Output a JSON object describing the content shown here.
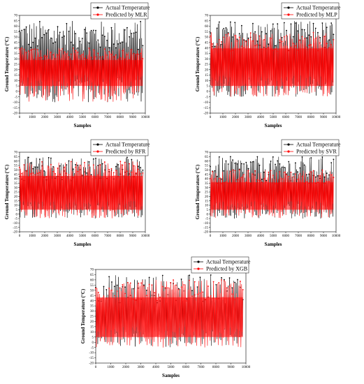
{
  "chart_data": [
    {
      "type": "line",
      "xlabel": "Samples",
      "ylabel": "Ground Temperature (°C)",
      "xlim": [
        0,
        10000
      ],
      "ylim": [
        -20,
        70
      ],
      "x_ticks": [
        "0",
        "1000",
        "2000",
        "3000",
        "4000",
        "5000",
        "6000",
        "7000",
        "8000",
        "9000",
        "10000"
      ],
      "y_ticks": [
        "-20",
        "-15",
        "-10",
        "-5",
        "0",
        "5",
        "10",
        "15",
        "20",
        "25",
        "30",
        "35",
        "40",
        "45",
        "50",
        "55",
        "60",
        "65",
        "70"
      ],
      "series": [
        {
          "name": "Actual Temperature",
          "color": "#000000",
          "marker": "circle",
          "range": [
            -10,
            65
          ]
        },
        {
          "name": "Predicted by MLR",
          "color": "#ff0000",
          "marker": "circle",
          "range": [
            -10,
            40
          ]
        }
      ],
      "legend": "top-right"
    },
    {
      "type": "line",
      "xlabel": "Samples",
      "ylabel": "Ground Temperature (°C)",
      "xlim": [
        0,
        10000
      ],
      "ylim": [
        -20,
        70
      ],
      "x_ticks": [
        "0",
        "1000",
        "2000",
        "3000",
        "4000",
        "5000",
        "6000",
        "7000",
        "8000",
        "9000",
        "10000"
      ],
      "y_ticks": [
        "-20",
        "-15",
        "-10",
        "-5",
        "0",
        "5",
        "10",
        "15",
        "20",
        "25",
        "30",
        "35",
        "40",
        "45",
        "50",
        "55",
        "60",
        "65",
        "70"
      ],
      "series": [
        {
          "name": "Actual Temperature",
          "color": "#000000",
          "marker": "circle",
          "range": [
            -5,
            65
          ]
        },
        {
          "name": "Predicted by MLP",
          "color": "#ff0000",
          "marker": "circle",
          "range": [
            -5,
            55
          ]
        }
      ],
      "legend": "top-right"
    },
    {
      "type": "line",
      "xlabel": "Samples",
      "ylabel": "Ground Temperature (°C)",
      "xlim": [
        0,
        10000
      ],
      "ylim": [
        -20,
        70
      ],
      "x_ticks": [
        "0",
        "1000",
        "2000",
        "3000",
        "4000",
        "5000",
        "6000",
        "7000",
        "8000",
        "9000",
        "10000"
      ],
      "y_ticks": [
        "-20",
        "-15",
        "-10",
        "-5",
        "0",
        "5",
        "10",
        "15",
        "20",
        "25",
        "30",
        "35",
        "40",
        "45",
        "50",
        "55",
        "60",
        "65",
        "70"
      ],
      "series": [
        {
          "name": "Actual Temperature",
          "color": "#000000",
          "marker": "circle",
          "range": [
            -5,
            65
          ]
        },
        {
          "name": "Predicted by RFR",
          "color": "#ff0000",
          "marker": "circle",
          "range": [
            -5,
            60
          ]
        }
      ],
      "legend": "top-right"
    },
    {
      "type": "line",
      "xlabel": "Samples",
      "ylabel": "Ground Temperature (°C)",
      "xlim": [
        0,
        10000
      ],
      "ylim": [
        -20,
        70
      ],
      "x_ticks": [
        "0",
        "1000",
        "2000",
        "3000",
        "4000",
        "5000",
        "6000",
        "7000",
        "8000",
        "9000",
        "10000"
      ],
      "y_ticks": [
        "-20",
        "-15",
        "-10",
        "-5",
        "0",
        "5",
        "10",
        "15",
        "20",
        "25",
        "30",
        "35",
        "40",
        "45",
        "50",
        "55",
        "60",
        "65",
        "70"
      ],
      "series": [
        {
          "name": "Actual Temperature",
          "color": "#000000",
          "marker": "circle",
          "range": [
            -5,
            65
          ]
        },
        {
          "name": "Predicted by SVR",
          "color": "#ff0000",
          "marker": "circle",
          "range": [
            -5,
            50
          ]
        }
      ],
      "legend": "top-right"
    },
    {
      "type": "line",
      "xlabel": "Samples",
      "ylabel": "Ground Temperature (°C)",
      "xlim": [
        0,
        10000
      ],
      "ylim": [
        -20,
        70
      ],
      "x_ticks": [
        "0",
        "1000",
        "2000",
        "3000",
        "4000",
        "5000",
        "6000",
        "7000",
        "8000",
        "9000",
        "10000"
      ],
      "y_ticks": [
        "-20",
        "-15",
        "-10",
        "-5",
        "0",
        "5",
        "10",
        "15",
        "20",
        "25",
        "30",
        "35",
        "40",
        "45",
        "50",
        "55",
        "60",
        "65",
        "70"
      ],
      "series": [
        {
          "name": "Actual Temperature",
          "color": "#000000",
          "marker": "circle",
          "range": [
            -5,
            65
          ]
        },
        {
          "name": "Predicted by XGB",
          "color": "#ff0000",
          "marker": "circle",
          "range": [
            -5,
            60
          ]
        }
      ],
      "legend": "top-right"
    }
  ]
}
